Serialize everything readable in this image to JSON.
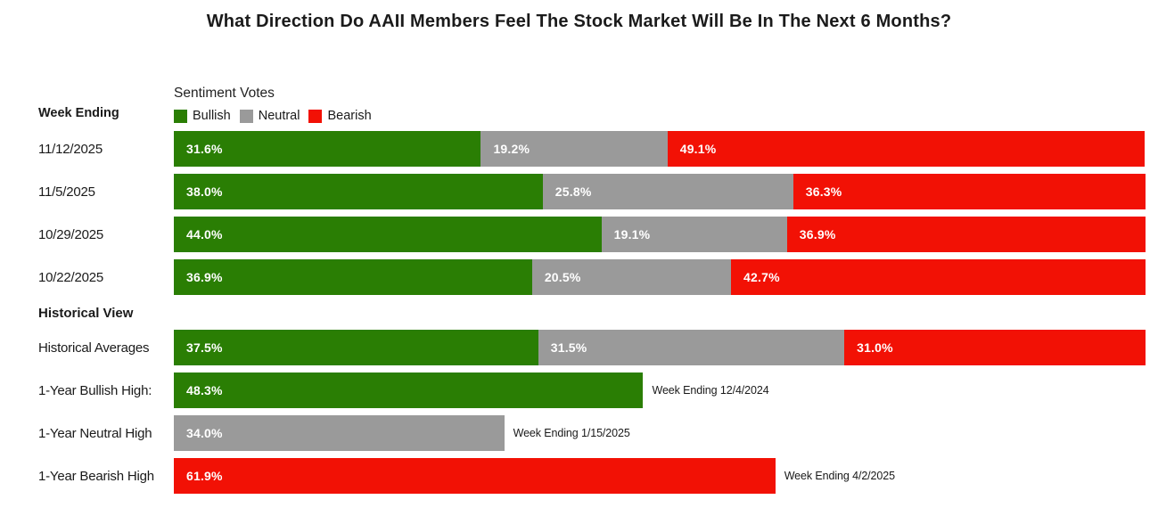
{
  "title": "What Direction Do AAII Members Feel The Stock Market Will Be In The Next 6 Months?",
  "legend": {
    "title": "Sentiment Votes",
    "items": [
      {
        "label": "Bullish",
        "series": "bullish"
      },
      {
        "label": "Neutral",
        "series": "neutral"
      },
      {
        "label": "Bearish",
        "series": "bearish"
      }
    ]
  },
  "colors": {
    "bullish": "#2a7e04",
    "neutral": "#9a9a9a",
    "bearish": "#f21105",
    "text": "#1a1a1a",
    "value_label": "#ffffff"
  },
  "chart_data": {
    "type": "bar",
    "variant": "horizontal-stacked",
    "x_unit": "percent",
    "xlim": [
      0,
      100
    ],
    "grid": false,
    "legend_position": "top",
    "series_order": [
      "bullish",
      "neutral",
      "bearish"
    ],
    "weekly": {
      "section_label": "Week Ending",
      "rows": [
        {
          "label": "11/12/2025",
          "bullish": 31.6,
          "neutral": 19.2,
          "bearish": 49.1
        },
        {
          "label": "11/5/2025",
          "bullish": 38.0,
          "neutral": 25.8,
          "bearish": 36.3
        },
        {
          "label": "10/29/2025",
          "bullish": 44.0,
          "neutral": 19.1,
          "bearish": 36.9
        },
        {
          "label": "10/22/2025",
          "bullish": 36.9,
          "neutral": 20.5,
          "bearish": 42.7
        }
      ]
    },
    "historical": {
      "section_label": "Historical View",
      "stacked_rows": [
        {
          "label": "Historical Averages",
          "bullish": 37.5,
          "neutral": 31.5,
          "bearish": 31.0
        }
      ],
      "single_rows": [
        {
          "label": "1-Year Bullish High:",
          "series": "bullish",
          "value": 48.3,
          "annotation": "Week Ending 12/4/2024"
        },
        {
          "label": "1-Year Neutral High",
          "series": "neutral",
          "value": 34.0,
          "annotation": "Week Ending 1/15/2025"
        },
        {
          "label": "1-Year Bearish High",
          "series": "bearish",
          "value": 61.9,
          "annotation": "Week Ending 4/2/2025"
        }
      ]
    }
  }
}
